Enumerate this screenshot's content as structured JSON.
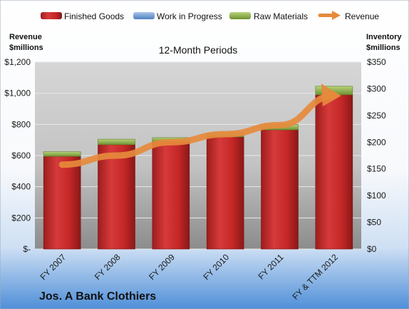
{
  "chart_data": {
    "type": "bar",
    "title": "12-Month Periods",
    "company": "Jos. A Bank Clothiers",
    "categories": [
      "FY 2007",
      "FY 2008",
      "FY 2009",
      "FY 2010",
      "FY 2011",
      "FY & TTM 2012"
    ],
    "series": [
      {
        "name": "Finished Goods",
        "axis": "left",
        "values": [
          595,
          670,
          690,
          720,
          765,
          990
        ],
        "color": "#cc2b2b"
      },
      {
        "name": "Work in Progress",
        "axis": "left",
        "values": [
          0,
          0,
          0,
          0,
          0,
          0
        ],
        "color": "#4f81bd"
      },
      {
        "name": "Raw Materials",
        "axis": "left",
        "values": [
          30,
          35,
          25,
          25,
          35,
          55
        ],
        "color": "#8fb04a"
      },
      {
        "name": "Revenue",
        "axis": "right",
        "type": "line",
        "values": [
          158,
          175,
          200,
          215,
          232,
          287
        ],
        "color": "#e68a3c"
      }
    ],
    "left_axis": {
      "label_line1": "Revenue",
      "label_line2": "$millions",
      "ylim": [
        0,
        1200
      ],
      "ticks": [
        0,
        200,
        400,
        600,
        800,
        1000,
        1200
      ],
      "tick_labels": [
        "$-",
        "$200",
        "$400",
        "$600",
        "$800",
        "$1,000",
        "$1,200"
      ]
    },
    "right_axis": {
      "label_line1": "Inventory",
      "label_line2": "$millions",
      "ylim": [
        0,
        350
      ],
      "ticks": [
        0,
        50,
        100,
        150,
        200,
        250,
        300,
        350
      ],
      "tick_labels": [
        "$0",
        "$50",
        "$100",
        "$150",
        "$200",
        "$250",
        "$300",
        "$350"
      ]
    },
    "grid": true,
    "legend_position": "top"
  }
}
